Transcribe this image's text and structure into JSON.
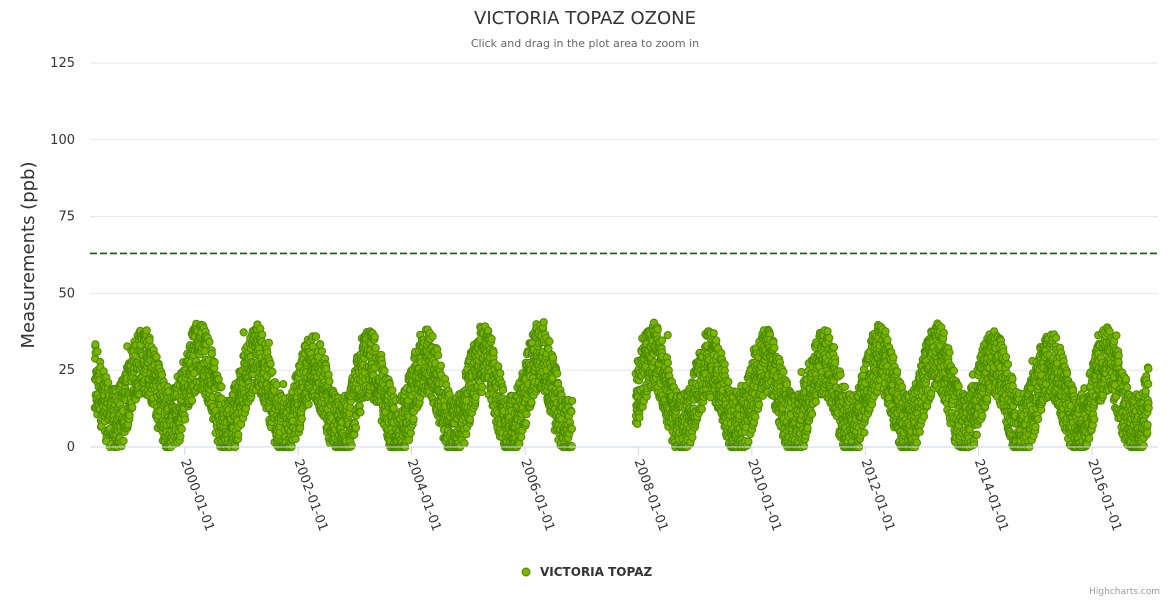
{
  "chart_data": {
    "type": "scatter",
    "title": "VICTORIA TOPAZ OZONE",
    "subtitle": "Click and drag in the plot area to zoom in",
    "ylabel": "Measurements (ppb)",
    "xlabel": "",
    "ylim": [
      0,
      125
    ],
    "xlim": [
      "1998-05-01",
      "2017-03-01"
    ],
    "yticks": [
      0,
      25,
      50,
      75,
      100,
      125
    ],
    "xticks": [
      "2000-01-01",
      "2002-01-01",
      "2004-01-01",
      "2006-01-01",
      "2008-01-01",
      "2010-01-01",
      "2012-01-01",
      "2014-01-01",
      "2016-01-01"
    ],
    "threshold": {
      "value": 63,
      "color": "#006400"
    },
    "legend": {
      "position": "bottom-center"
    },
    "series": [
      {
        "name": "VICTORIA TOPAZ",
        "color": "#7cb500",
        "segments": [
          {
            "start": "1998-06-01",
            "end": "2006-10-31"
          },
          {
            "start": "2007-12-15",
            "end": "2016-12-31"
          }
        ],
        "seasonal_profile": {
          "seasonal_peaks_ppb": [
            28,
            28,
            30,
            29,
            26,
            27,
            28,
            29,
            30,
            33,
            30,
            27,
            28,
            28,
            29,
            30,
            28,
            27,
            28
          ],
          "seasonal_troughs_ppb": [
            8,
            8,
            6,
            5,
            5,
            6,
            6,
            6,
            5,
            6,
            6,
            7,
            6,
            6,
            6,
            6,
            6,
            7,
            6
          ],
          "max_ppb": 46,
          "min_ppb": 0
        }
      }
    ]
  },
  "credits": "Highcharts.com"
}
